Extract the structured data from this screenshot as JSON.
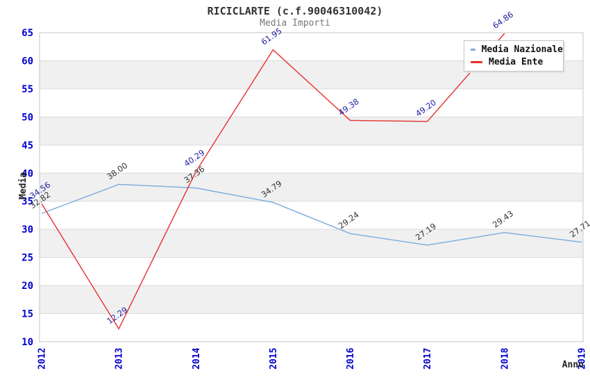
{
  "title": "RICICLARTE (c.f.90046310042)",
  "subtitle": "Media Importi",
  "chart_data": {
    "type": "line",
    "title": "RICICLARTE (c.f.90046310042)",
    "subtitle": "Media Importi",
    "xlabel": "Anno",
    "ylabel": "Media",
    "categories": [
      "2012",
      "2013",
      "2014",
      "2015",
      "2016",
      "2017",
      "2018",
      "2019"
    ],
    "series": [
      {
        "name": "Media Nazionale",
        "color": "#7aabdc",
        "label_color": "#333333",
        "values": [
          32.82,
          38.0,
          37.36,
          34.79,
          29.24,
          27.19,
          29.43,
          27.71
        ]
      },
      {
        "name": "Media Ente",
        "color": "#e42f2f",
        "label_color": "#2020a0",
        "values": [
          34.56,
          12.29,
          40.29,
          61.95,
          49.38,
          49.2,
          64.86,
          null
        ]
      }
    ],
    "ylim": [
      10,
      65
    ],
    "yticks": [
      10,
      15,
      20,
      25,
      30,
      35,
      40,
      45,
      50,
      55,
      60,
      65
    ],
    "grid": true,
    "legend_position": "top-right",
    "band_colors": [
      "#ffffff",
      "#f0f0f0"
    ],
    "note_2019_media_ente": "line exits above chart top; value not visible"
  },
  "colors": {
    "tick_label": "#0000cd",
    "grid_line": "#d9d9d9",
    "plot_border": "#c6c6c6",
    "title": "#333333",
    "subtitle": "#777777"
  }
}
